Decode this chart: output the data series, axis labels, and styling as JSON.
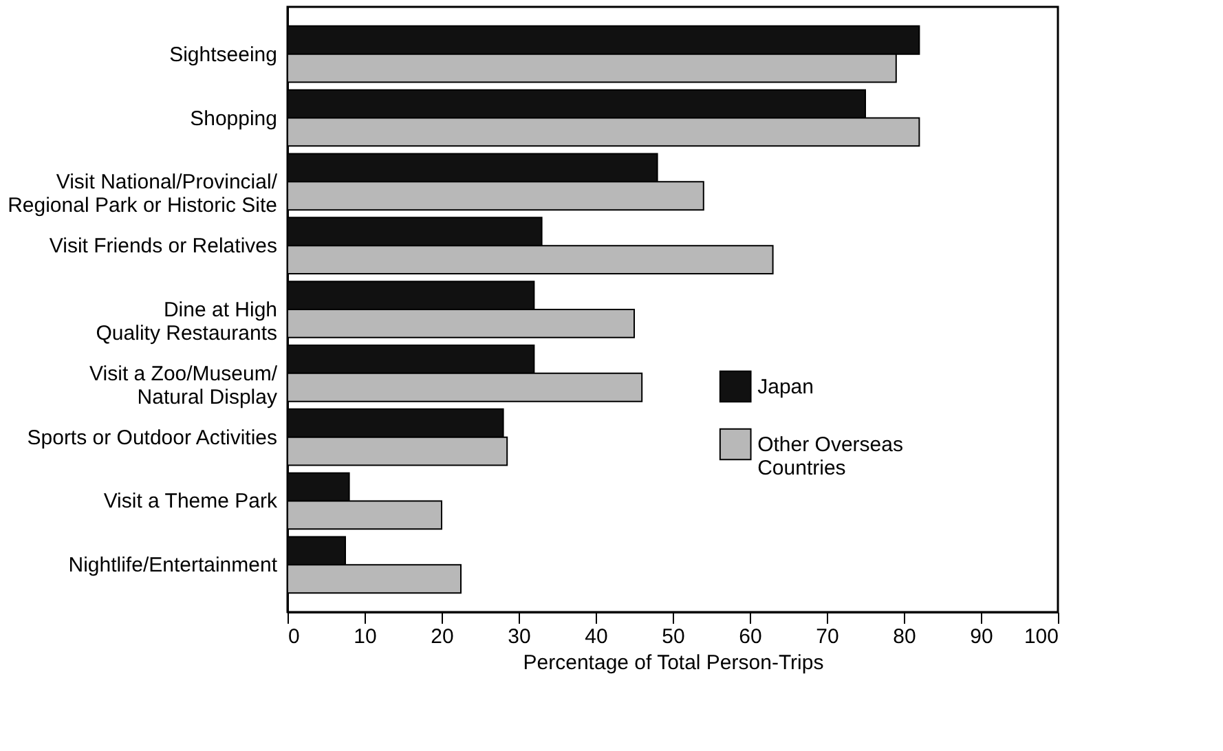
{
  "chart_data": {
    "type": "bar",
    "orientation": "horizontal",
    "xlabel": "Percentage of Total Person-Trips",
    "categories": [
      "Sightseeing",
      "Shopping",
      "Visit National/Provincial/\nRegional Park or Historic Site",
      "Visit Friends or Relatives",
      "Dine at High\nQuality Restaurants",
      "Visit a Zoo/Museum/\nNatural Display",
      "Sports or Outdoor Activities",
      "Visit a Theme Park",
      "Nightlife/Entertainment"
    ],
    "series": [
      {
        "name": "Japan",
        "color": "#111111",
        "values": [
          82,
          75,
          48,
          33,
          32,
          32,
          28,
          8,
          7.5
        ]
      },
      {
        "name": "Other Overseas\nCountries",
        "color": "#b8b8b8",
        "values": [
          79,
          82,
          54,
          63,
          45,
          46,
          28.5,
          20,
          22.5
        ]
      }
    ],
    "xlim": [
      0,
      100
    ],
    "xticks": [
      0,
      10,
      20,
      30,
      40,
      50,
      60,
      70,
      80,
      90,
      100
    ],
    "grid": false,
    "legend": "right"
  }
}
